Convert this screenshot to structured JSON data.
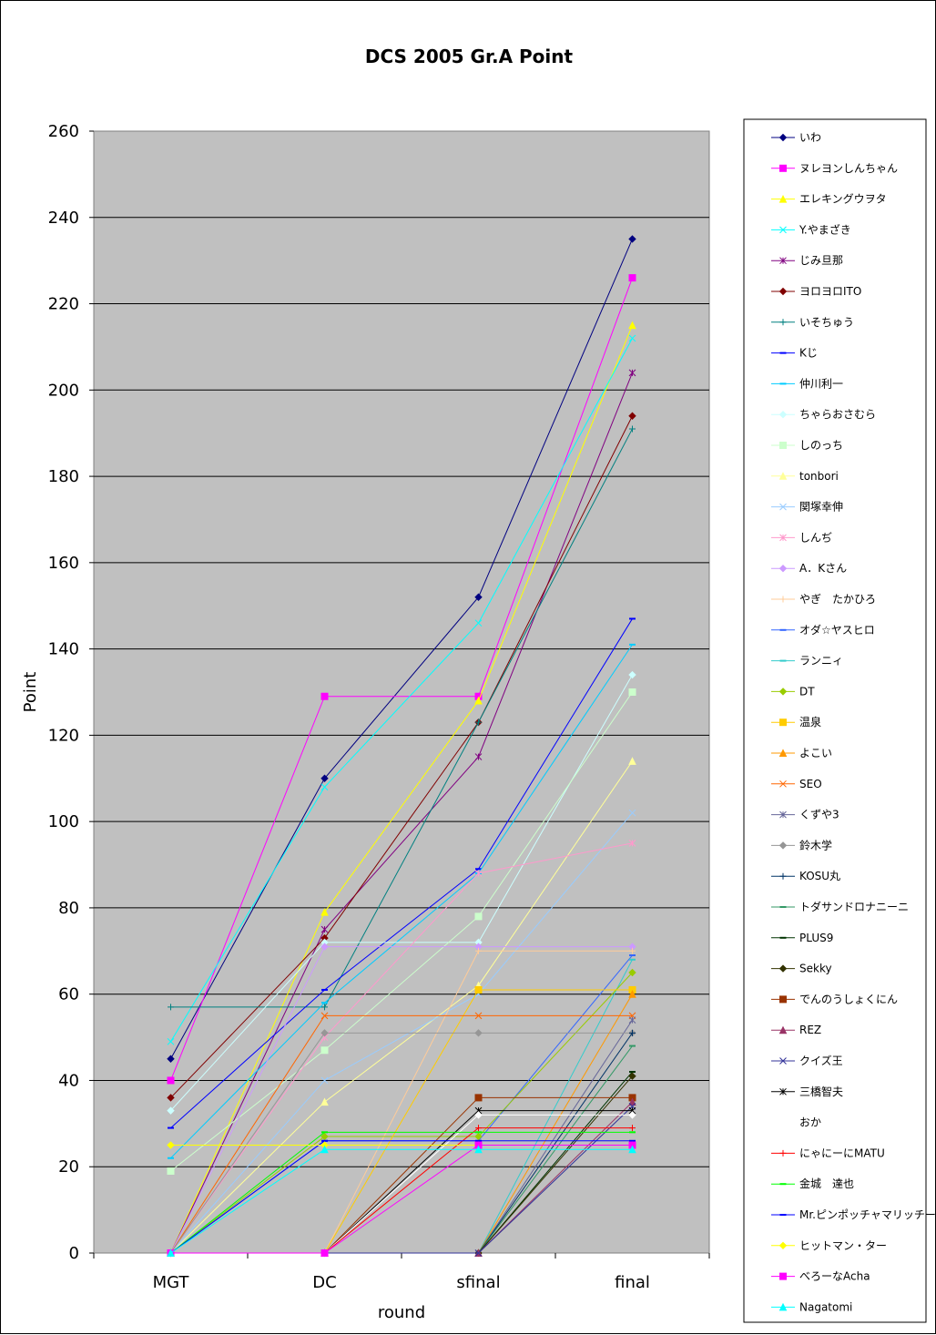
{
  "chart_data": {
    "type": "line",
    "title": "DCS 2005 Gr.A Point",
    "xlabel": "round",
    "ylabel": "Point",
    "ylim": [
      0,
      260
    ],
    "yticks": [
      0,
      20,
      40,
      60,
      80,
      100,
      120,
      140,
      160,
      180,
      200,
      220,
      240,
      260
    ],
    "categories": [
      "MGT",
      "DC",
      "sfinal",
      "final"
    ],
    "grid": true,
    "legend_position": "right",
    "series": [
      {
        "name": "いわ",
        "color": "#000080",
        "marker": "diamond",
        "values": [
          45,
          110,
          152,
          235
        ]
      },
      {
        "name": "ヌレヨンしんちゃん",
        "color": "#ff00ff",
        "marker": "square",
        "values": [
          40,
          129,
          129,
          226
        ]
      },
      {
        "name": "エレキングウヲタ",
        "color": "#ffff00",
        "marker": "triangle",
        "values": [
          0,
          79,
          128,
          215
        ]
      },
      {
        "name": "Y.やまざき",
        "color": "#00ffff",
        "marker": "x",
        "values": [
          49,
          108,
          146,
          212
        ]
      },
      {
        "name": "じみ旦那",
        "color": "#800080",
        "marker": "star",
        "values": [
          0,
          75,
          115,
          204
        ]
      },
      {
        "name": "ヨロヨロITO",
        "color": "#800000",
        "marker": "diamond",
        "values": [
          36,
          73,
          123,
          194
        ]
      },
      {
        "name": "いそちゅう",
        "color": "#008080",
        "marker": "plus",
        "values": [
          57,
          57,
          123,
          191
        ]
      },
      {
        "name": "Kじ",
        "color": "#0000ff",
        "marker": "dash",
        "values": [
          29,
          61,
          89,
          147
        ]
      },
      {
        "name": "仲川利一",
        "color": "#00ccff",
        "marker": "dash",
        "values": [
          22,
          58,
          88,
          141
        ]
      },
      {
        "name": "ちゃらおさむら",
        "color": "#ccffff",
        "marker": "diamond",
        "values": [
          33,
          72,
          72,
          134
        ]
      },
      {
        "name": "しのっち",
        "color": "#ccffcc",
        "marker": "square",
        "values": [
          19,
          47,
          78,
          130
        ]
      },
      {
        "name": "tonbori",
        "color": "#ffff99",
        "marker": "triangle",
        "values": [
          0,
          35,
          62,
          114
        ]
      },
      {
        "name": "関塚幸伸",
        "color": "#99ccff",
        "marker": "x",
        "values": [
          0,
          40,
          60,
          102
        ]
      },
      {
        "name": "しんぢ",
        "color": "#ff99cc",
        "marker": "star",
        "values": [
          0,
          50,
          88,
          95
        ]
      },
      {
        "name": "A．Kさん",
        "color": "#cc99ff",
        "marker": "diamond",
        "values": [
          0,
          71,
          71,
          71
        ]
      },
      {
        "name": "やぎ　たかひろ",
        "color": "#ffcc99",
        "marker": "plus",
        "values": [
          0,
          0,
          70,
          70
        ]
      },
      {
        "name": "オダ☆ヤスヒロ",
        "color": "#3366ff",
        "marker": "dash",
        "values": [
          0,
          26,
          26,
          69
        ]
      },
      {
        "name": "ランニィ",
        "color": "#33cccc",
        "marker": "dash",
        "values": [
          0,
          0,
          0,
          68
        ]
      },
      {
        "name": "DT",
        "color": "#99cc00",
        "marker": "diamond",
        "values": [
          0,
          27,
          27,
          65
        ]
      },
      {
        "name": "温泉",
        "color": "#ffcc00",
        "marker": "square",
        "values": [
          0,
          0,
          61,
          61
        ]
      },
      {
        "name": "よこい",
        "color": "#ff9900",
        "marker": "triangle",
        "values": [
          0,
          0,
          0,
          60
        ]
      },
      {
        "name": "SEO",
        "color": "#ff6600",
        "marker": "x",
        "values": [
          0,
          55,
          55,
          55
        ]
      },
      {
        "name": "くずや3",
        "color": "#666699",
        "marker": "star",
        "values": [
          0,
          0,
          0,
          54
        ]
      },
      {
        "name": "鈴木学",
        "color": "#969696",
        "marker": "diamond",
        "values": [
          0,
          51,
          51,
          51
        ]
      },
      {
        "name": "KOSU丸",
        "color": "#003366",
        "marker": "plus",
        "values": [
          0,
          0,
          0,
          51
        ]
      },
      {
        "name": "トダサンドロナニーニ",
        "color": "#339966",
        "marker": "dash",
        "values": [
          0,
          0,
          0,
          48
        ]
      },
      {
        "name": "PLUS9",
        "color": "#003300",
        "marker": "dash",
        "values": [
          0,
          0,
          0,
          42
        ]
      },
      {
        "name": "Sekky",
        "color": "#333300",
        "marker": "diamond",
        "values": [
          0,
          0,
          0,
          41
        ]
      },
      {
        "name": "でんのうしょくにん",
        "color": "#993300",
        "marker": "square",
        "values": [
          0,
          0,
          36,
          36
        ]
      },
      {
        "name": "REZ",
        "color": "#993366",
        "marker": "triangle",
        "values": [
          0,
          0,
          0,
          35
        ]
      },
      {
        "name": "クイズ王",
        "color": "#333399",
        "marker": "x",
        "values": [
          0,
          0,
          0,
          34
        ]
      },
      {
        "name": "三橋智夫",
        "color": "#000000",
        "marker": "star",
        "values": [
          0,
          0,
          33,
          33
        ]
      },
      {
        "name": "おか",
        "color": "#ffffff",
        "marker": "diamond",
        "values": [
          0,
          0,
          32,
          32
        ]
      },
      {
        "name": "にゃにーにMATU",
        "color": "#ff0000",
        "marker": "plus",
        "values": [
          0,
          0,
          29,
          29
        ]
      },
      {
        "name": "金城　達也",
        "color": "#00ff00",
        "marker": "dash",
        "values": [
          0,
          28,
          28,
          28
        ]
      },
      {
        "name": "Mr.ピンポッチャマリッチー",
        "color": "#0000ff",
        "marker": "dash",
        "values": [
          0,
          26,
          26,
          26
        ]
      },
      {
        "name": "ヒットマン・ター",
        "color": "#ffff00",
        "marker": "diamond",
        "values": [
          25,
          25,
          25,
          25
        ]
      },
      {
        "name": "べろーなAcha",
        "color": "#ff00ff",
        "marker": "square",
        "values": [
          0,
          0,
          25,
          25
        ]
      },
      {
        "name": "Nagatomi",
        "color": "#00ffff",
        "marker": "triangle",
        "values": [
          0,
          24,
          24,
          24
        ]
      }
    ]
  }
}
